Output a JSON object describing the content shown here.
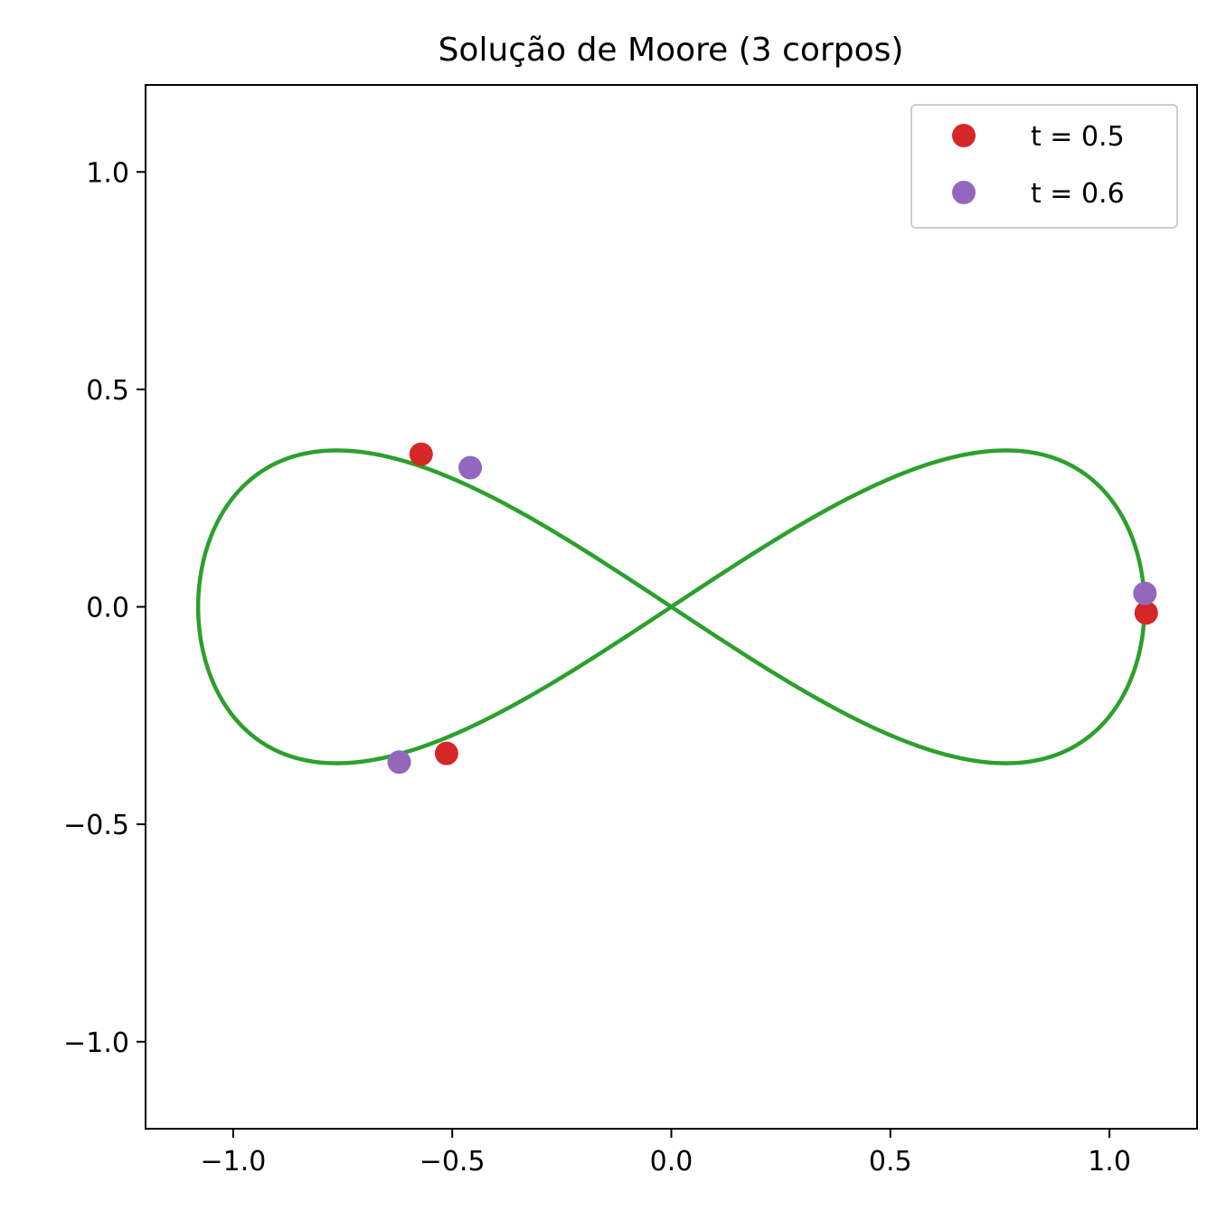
{
  "chart_data": {
    "type": "line",
    "title": "Solução de Moore (3 corpos)",
    "xlabel": "",
    "ylabel": "",
    "xlim": [
      -1.2,
      1.2
    ],
    "ylim": [
      -1.2,
      1.2
    ],
    "grid": false,
    "legend_position": "top-right",
    "x_ticks": [
      -1.0,
      -0.5,
      0.0,
      0.5,
      1.0
    ],
    "x_tick_labels": [
      "−1.0",
      "−0.5",
      "0.0",
      "0.5",
      "1.0"
    ],
    "y_ticks": [
      1.0,
      0.5,
      0.0,
      -0.5,
      -1.0
    ],
    "y_tick_labels": [
      "1.0",
      "0.5",
      "0.0",
      "−0.5",
      "−1.0"
    ],
    "trajectory": {
      "color": "#2ca02c",
      "shape": "figure-eight",
      "x_extent": [
        -1.08,
        1.08
      ],
      "y_extent": [
        -0.36,
        0.36
      ],
      "lobe_peak_x": 0.66,
      "lobe_peak_y": 0.355
    },
    "series": [
      {
        "name": "t = 0.5",
        "color": "#d62728",
        "points": [
          {
            "x": -0.571,
            "y": 0.351
          },
          {
            "x": 1.084,
            "y": -0.014
          },
          {
            "x": -0.513,
            "y": -0.337
          }
        ]
      },
      {
        "name": "t = 0.6",
        "color": "#9467bd",
        "points": [
          {
            "x": -0.459,
            "y": 0.32
          },
          {
            "x": 1.081,
            "y": 0.031
          },
          {
            "x": -0.621,
            "y": -0.357
          }
        ]
      }
    ]
  }
}
